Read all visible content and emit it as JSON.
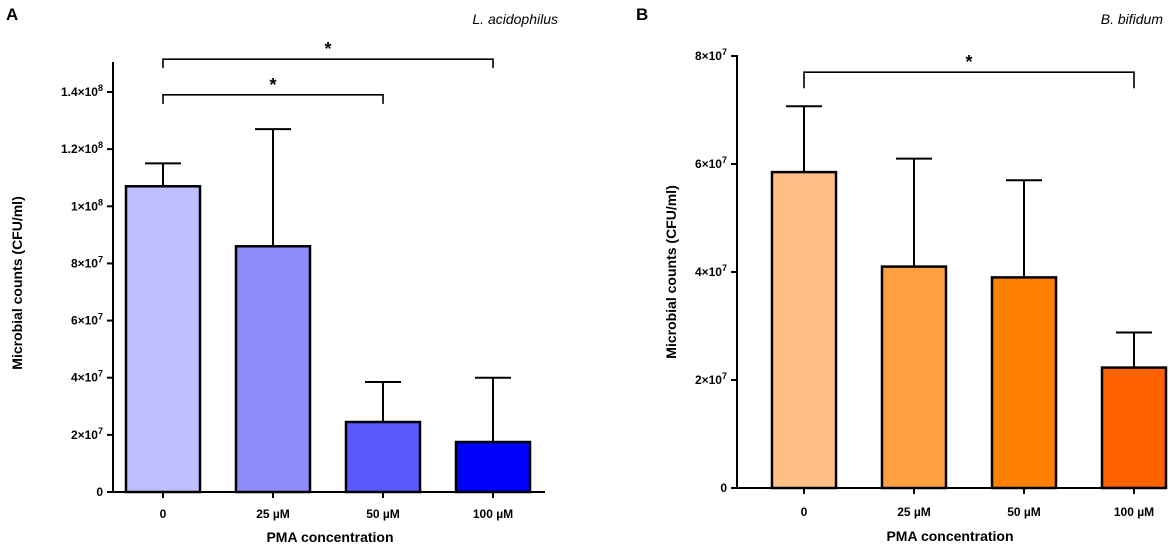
{
  "chart_data": [
    {
      "type": "bar",
      "panel": "A",
      "species": "L. acidophilus",
      "xlabel": "PMA concentration",
      "ylabel": "Microbial counts (CFU/ml)",
      "categories": [
        "0",
        "25 µM",
        "50 µM",
        "100 µM"
      ],
      "values": [
        107000000,
        86000000,
        24500000,
        17500000
      ],
      "errors": [
        8000000,
        41000000,
        14000000,
        22500000
      ],
      "colors": [
        "#c0c0fe",
        "#8d8dfe",
        "#5959fe",
        "#0000fb"
      ],
      "ylim": [
        0,
        150000000
      ],
      "yticks": [
        {
          "value": 0,
          "base": "0",
          "exp": ""
        },
        {
          "value": 20000000,
          "base": "2×10",
          "exp": "7"
        },
        {
          "value": 40000000,
          "base": "4×10",
          "exp": "7"
        },
        {
          "value": 60000000,
          "base": "6×10",
          "exp": "7"
        },
        {
          "value": 80000000,
          "base": "8×10",
          "exp": "7"
        },
        {
          "value": 100000000,
          "base": "1×10",
          "exp": "8"
        },
        {
          "value": 120000000,
          "base": "1.2×10",
          "exp": "8"
        },
        {
          "value": 140000000,
          "base": "1.4×10",
          "exp": "8"
        }
      ],
      "significance": [
        {
          "from": 0,
          "to": 2,
          "label": "*",
          "level": 139000000
        },
        {
          "from": 0,
          "to": 3,
          "label": "*",
          "level": 151500000
        }
      ]
    },
    {
      "type": "bar",
      "panel": "B",
      "species": "B. bifidum",
      "xlabel": "PMA concentration",
      "ylabel": "Microbial counts (CFU/ml)",
      "categories": [
        "0",
        "25 µM",
        "50 µM",
        "100 µM"
      ],
      "values": [
        58500000,
        41000000,
        39000000,
        22300000
      ],
      "errors": [
        12200000,
        20000000,
        18000000,
        6500000
      ],
      "colors": [
        "#fec084",
        "#fea040",
        "#fe8000",
        "#fe6300"
      ],
      "ylim": [
        0,
        80000000
      ],
      "yticks": [
        {
          "value": 0,
          "base": "0",
          "exp": ""
        },
        {
          "value": 20000000,
          "base": "2×10",
          "exp": "7"
        },
        {
          "value": 40000000,
          "base": "4×10",
          "exp": "7"
        },
        {
          "value": 60000000,
          "base": "6×10",
          "exp": "7"
        },
        {
          "value": 80000000,
          "base": "8×10",
          "exp": "7"
        }
      ],
      "significance": [
        {
          "from": 0,
          "to": 3,
          "label": "*",
          "level": 77000000
        }
      ]
    }
  ]
}
